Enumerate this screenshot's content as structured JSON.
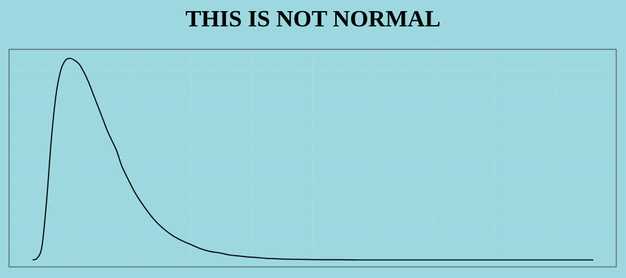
{
  "chart_data": {
    "type": "line",
    "title": "THIS IS NOT NORMAL",
    "xlabel": "",
    "ylabel": "",
    "grid": true,
    "legend": "none",
    "xlim": [
      0,
      12
    ],
    "ylim": [
      0,
      1
    ],
    "xticks": [
      0,
      1,
      2,
      3,
      4,
      5,
      6,
      7,
      8,
      9,
      10
    ],
    "yticks": [
      0.1,
      0.2,
      0.3,
      0.4,
      0.5,
      0.6,
      0.7,
      0.8,
      0.9,
      1.0
    ],
    "colors": {
      "background": "#9dd8e0",
      "line": "#000000",
      "grid": "#b8e0c8",
      "frame": "#444444"
    },
    "series": [
      {
        "x": [
          0.0,
          0.1,
          0.2,
          0.3,
          0.4,
          0.5,
          0.6,
          0.7,
          0.8,
          0.9,
          1.0,
          1.1,
          1.2,
          1.3,
          1.4,
          1.5,
          1.6,
          1.7,
          1.8,
          1.9,
          2.0,
          2.2,
          2.4,
          2.6,
          2.8,
          3.0,
          3.2,
          3.4,
          3.6,
          3.8,
          4.0,
          4.2,
          4.4,
          4.6,
          4.8,
          5.0,
          5.3,
          5.6,
          5.9,
          6.2,
          6.6,
          7.0,
          7.5,
          8.0,
          8.5,
          9.0,
          9.5,
          10.0,
          10.5,
          11.0,
          11.5,
          12.0
        ],
        "y": [
          0.0,
          0.01,
          0.07,
          0.3,
          0.6,
          0.82,
          0.94,
          0.99,
          1.0,
          0.99,
          0.97,
          0.93,
          0.88,
          0.82,
          0.76,
          0.7,
          0.64,
          0.59,
          0.54,
          0.47,
          0.42,
          0.33,
          0.26,
          0.2,
          0.155,
          0.12,
          0.095,
          0.075,
          0.055,
          0.042,
          0.035,
          0.025,
          0.02,
          0.015,
          0.012,
          0.008,
          0.005,
          0.003,
          0.002,
          0.001,
          0.001,
          0.0,
          0.0,
          0.0,
          0.0,
          0.0,
          0.0,
          0.0,
          0.0,
          0.0,
          0.0,
          0.0
        ]
      }
    ]
  }
}
